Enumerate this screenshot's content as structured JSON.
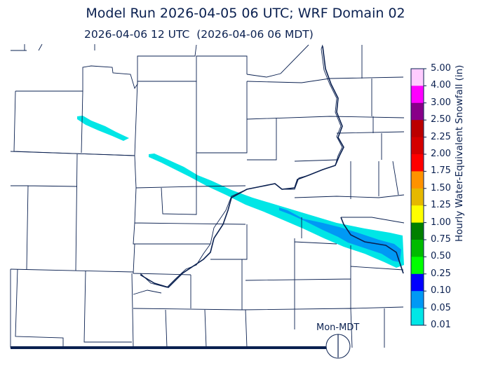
{
  "title": "Model Run 2026-04-05 06 UTC; WRF Domain 02",
  "subtitle": "2026-04-06 12 UTC  (2026-04-06 06 MDT)",
  "colorbar": {
    "label": "Hourly Water-Equivalent Snowfall (in)",
    "ticks": [
      "5.00",
      "4.00",
      "3.00",
      "2.50",
      "2.25",
      "2.00",
      "1.75",
      "1.50",
      "1.25",
      "1.00",
      "0.75",
      "0.50",
      "0.25",
      "0.10",
      "0.05",
      "0.01"
    ],
    "colors": [
      "#ffccff",
      "#ff00ff",
      "#880088",
      "#bb0000",
      "#d40000",
      "#ff0000",
      "#ff9200",
      "#e6b800",
      "#ffff00",
      "#008000",
      "#00bb00",
      "#00ff00",
      "#0000ff",
      "#0099f5",
      "#00e6e6"
    ]
  },
  "clock": {
    "label": "Mon-MDT"
  },
  "colors": {
    "boundary": "#0a2050",
    "snow_light": "#00e6e6",
    "snow_moderate": "#0099f5"
  }
}
